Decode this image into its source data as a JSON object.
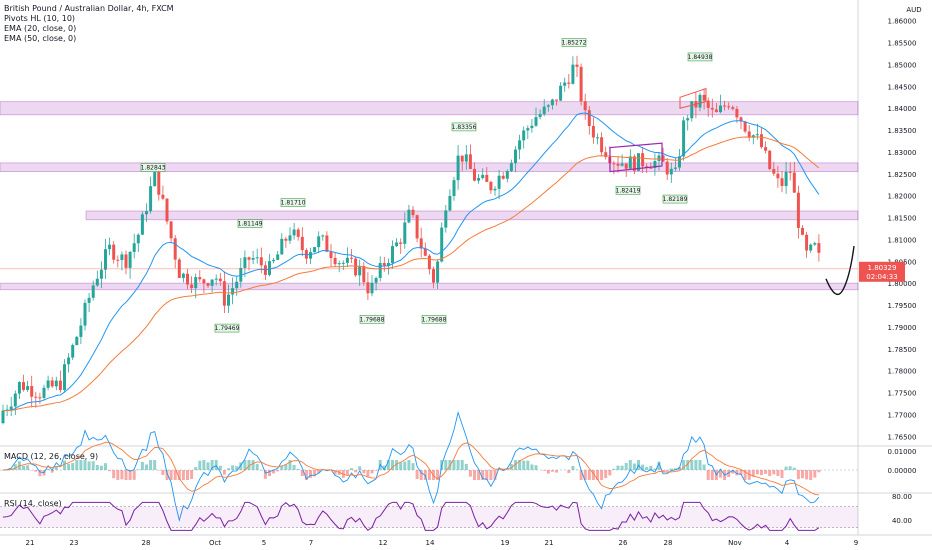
{
  "legend": {
    "main": "British Pound / Australian Dollar, 4h, FXCM",
    "ind1": "Pivots HL (10, 10)",
    "ind2": "EMA (20, close, 0)",
    "ind3": "EMA (50, close, 0)",
    "macd": "MACD (12, 26, close, 9)",
    "rsi": "RSI (14, close)"
  },
  "price_axis": {
    "currency": "AUD",
    "ticks": [
      "1.86000",
      "1.85500",
      "1.85000",
      "1.84500",
      "1.84000",
      "1.83500",
      "1.83000",
      "1.82500",
      "1.82000",
      "1.81500",
      "1.81000",
      "1.80500",
      "1.80000",
      "1.79500",
      "1.79000",
      "1.78500",
      "1.78000",
      "1.77500",
      "1.77000",
      "1.76500"
    ],
    "last_price": "1.80329",
    "countdown": "02:04:33"
  },
  "macd_axis": {
    "ticks": [
      "0.01000",
      "0.00000"
    ]
  },
  "rsi_axis": {
    "ticks": [
      "80.00",
      "40.00"
    ]
  },
  "time_axis": {
    "ticks": [
      "21",
      "23",
      "28",
      "Oct",
      "5",
      "7",
      "12",
      "14",
      "19",
      "21",
      "26",
      "28",
      "Nov",
      "4",
      "9"
    ]
  },
  "pivots": [
    "1.82843",
    "1.79469",
    "1.81149",
    "1.81710",
    "1.79688",
    "1.79688",
    "1.83356",
    "1.85272",
    "1.82419",
    "1.82189",
    "1.84938"
  ],
  "colors": {
    "bull": "#26a69a",
    "bear": "#ef5350",
    "ema20": "#2196f3",
    "ema50": "#f57c3b",
    "zone": "#9c27b0",
    "rsi": "#7b1fa2",
    "price_label": "#ef5350"
  },
  "chart_data": {
    "type": "candlestick",
    "symbol": "British Pound / Australian Dollar",
    "interval": "4h",
    "ylim": [
      1.763,
      1.862
    ],
    "zones": [
      [
        1.8385,
        1.8415
      ],
      [
        1.8255,
        1.8275
      ],
      [
        1.8145,
        1.8165
      ],
      [
        1.7985,
        1.8
      ]
    ],
    "trend_lines": [
      {
        "from": [
          1.8255,
          1.825
        ],
        "to": [
          1.8245,
          1.8268
        ]
      },
      {
        "from": [
          1.8315,
          1.829
        ],
        "to": [
          1.832,
          1.83
        ]
      }
    ],
    "projection": [
      1.801,
      1.7985,
      1.806,
      1.8085
    ],
    "last_price": 1.80329
  }
}
